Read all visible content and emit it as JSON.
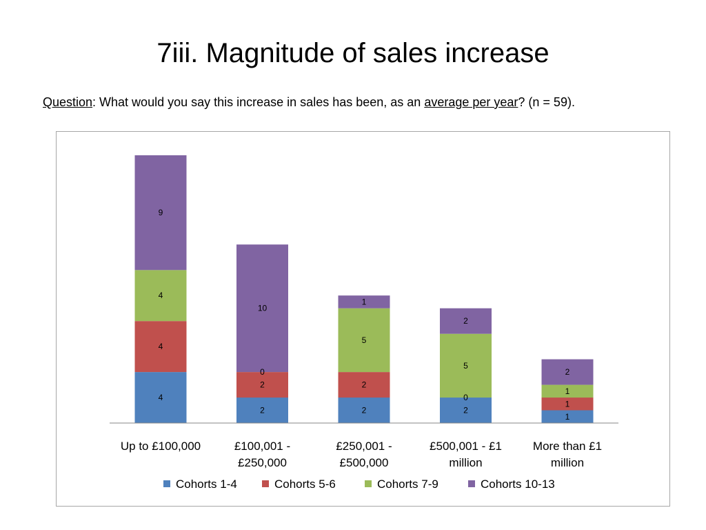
{
  "slide": {
    "title": "7iii. Magnitude of sales increase",
    "question_label": "Question",
    "question_text_1": ":  What would you say this increase in sales has been, as an ",
    "question_emphasis": "average per year",
    "question_text_2": "? (n = 59)."
  },
  "chart_data": {
    "type": "bar",
    "stacked": true,
    "title": "",
    "xlabel": "",
    "ylabel": "",
    "ylim": [
      0,
      21
    ],
    "grid": false,
    "legend_position": "bottom",
    "categories": [
      [
        "Up to £100,000"
      ],
      [
        "£100,001 -",
        "£250,000"
      ],
      [
        "£250,001 -",
        "£500,000"
      ],
      [
        "£500,001 - £1",
        "million"
      ],
      [
        "More than £1",
        "million"
      ]
    ],
    "series": [
      {
        "name": "Cohorts 1-4",
        "color": "#4f81bd",
        "values": [
          4,
          2,
          2,
          2,
          1
        ]
      },
      {
        "name": "Cohorts 5-6",
        "color": "#c0504d",
        "values": [
          4,
          2,
          2,
          0,
          1
        ]
      },
      {
        "name": "Cohorts 7-9",
        "color": "#9bbb59",
        "values": [
          4,
          0,
          5,
          5,
          1
        ]
      },
      {
        "name": "Cohorts 10-13",
        "color": "#8064a2",
        "values": [
          9,
          10,
          1,
          2,
          2
        ]
      }
    ]
  }
}
